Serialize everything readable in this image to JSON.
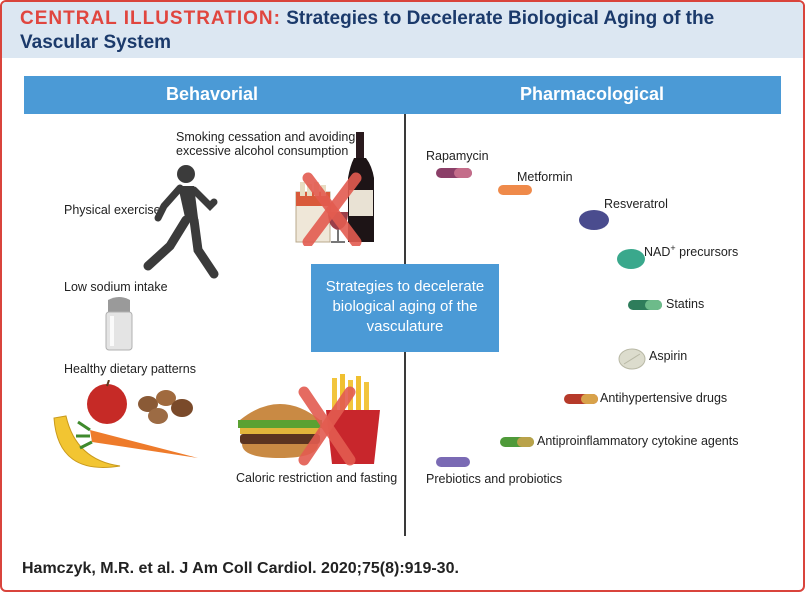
{
  "header": {
    "label": "CENTRAL ILLUSTRATION:",
    "title_line1": "Strategies to Decelerate Biological Aging of the",
    "title_line2": "Vascular System"
  },
  "categories": {
    "left": "Behavorial",
    "right": "Pharmacological"
  },
  "center": {
    "line1": "Strategies to decelerate",
    "line2": "biological aging of the",
    "line3": "vasculature"
  },
  "behavioral": {
    "smoking_line1": "Smoking cessation and avoiding",
    "smoking_line2": "excessive alcohol consumption",
    "exercise": "Physical exercise",
    "sodium": "Low sodium intake",
    "diet": "Healthy dietary patterns",
    "caloric": "Caloric restriction and fasting"
  },
  "pharmacological": {
    "rapamycin": "Rapamycin",
    "metformin": "Metformin",
    "resveratrol": "Resveratrol",
    "nad_main": "NAD",
    "nad_sup": "+",
    "nad_rest": " precursors",
    "statins": "Statins",
    "aspirin": "Aspirin",
    "antihypertensive": "Antihypertensive drugs",
    "antiinflammatory": "Antiproinflammatory cytokine agents",
    "probiotics": "Prebiotics and probiotics"
  },
  "footer": {
    "citation": "Hamczyk, M.R. et al. J Am Coll Cardiol. 2020;75(8):919-30."
  },
  "colors": {
    "accent_red": "#e0463f",
    "title_blue": "#1b3a6b",
    "bar_blue": "#4b9ad6",
    "header_bg": "#dce7f2"
  },
  "icons": [
    "runner-icon",
    "wine-bottle-icon",
    "cigarettes-icon",
    "salt-shaker-icon",
    "fruits-vegetables-icon",
    "burger-fries-icon",
    "cross-mark-icon",
    "pill-icon"
  ]
}
